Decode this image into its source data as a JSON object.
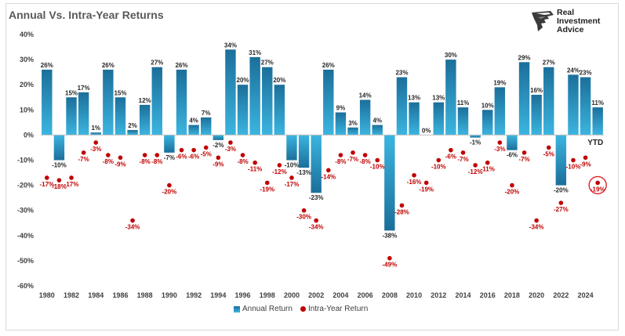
{
  "title": "Annual Vs. Intra-Year Returns",
  "logo": {
    "line1": "Real",
    "line2": "Investment",
    "line3": "Advice",
    "icon": "eagle-head-icon"
  },
  "ytd_label": "YTD",
  "colors": {
    "bar_top": "#1b6f9a",
    "bar_bottom": "#3bb5e0",
    "dot": "#c00000",
    "highlight_circle": "#e0202a"
  },
  "legend": {
    "annual": "Annual Return",
    "intra": "Intra-Year Return"
  },
  "chart_data": {
    "type": "bar",
    "title": "Annual Vs. Intra-Year Returns",
    "ylim": [
      -60,
      40
    ],
    "yticks": [
      40,
      30,
      20,
      10,
      0,
      -10,
      -20,
      -30,
      -40,
      -50,
      -60
    ],
    "ytick_labels": [
      "40%",
      "30%",
      "20%",
      "10%",
      "0%",
      "-10%",
      "-20%",
      "-30%",
      "-40%",
      "-50%",
      "-60%"
    ],
    "xtick_labels": [
      "1980",
      "1982",
      "1984",
      "1986",
      "1988",
      "1990",
      "1992",
      "1994",
      "1996",
      "1998",
      "2000",
      "2002",
      "2004",
      "2006",
      "2008",
      "2010",
      "2012",
      "2014",
      "2016",
      "2018",
      "2020",
      "2022",
      "2024"
    ],
    "legend_position": "bottom",
    "grid": false,
    "years": [
      1980,
      1981,
      1982,
      1983,
      1984,
      1985,
      1986,
      1987,
      1988,
      1989,
      1990,
      1991,
      1992,
      1993,
      1994,
      1995,
      1996,
      1997,
      1998,
      1999,
      2000,
      2001,
      2002,
      2003,
      2004,
      2005,
      2006,
      2007,
      2008,
      2009,
      2010,
      2011,
      2012,
      2013,
      2014,
      2015,
      2016,
      2017,
      2018,
      2019,
      2020,
      2021,
      2022,
      2023,
      2024,
      2025
    ],
    "series": [
      {
        "name": "Annual Return",
        "values": [
          26,
          -10,
          15,
          17,
          1,
          26,
          15,
          2,
          12,
          27,
          -7,
          26,
          4,
          7,
          -2,
          34,
          20,
          31,
          27,
          20,
          -10,
          -13,
          -23,
          26,
          9,
          3,
          14,
          4,
          -38,
          23,
          13,
          0,
          13,
          30,
          11,
          -1,
          10,
          19,
          -6,
          29,
          16,
          27,
          -20,
          24,
          23,
          11
        ]
      },
      {
        "name": "Intra-Year Return",
        "values": [
          -17,
          -18,
          -17,
          -7,
          -3,
          -8,
          -9,
          -34,
          -8,
          -8,
          -20,
          -6,
          -6,
          -5,
          -9,
          -3,
          -8,
          -11,
          -19,
          -12,
          -17,
          -30,
          -34,
          -14,
          -8,
          -7,
          -8,
          -10,
          -49,
          -28,
          -16,
          -19,
          -10,
          -6,
          -7,
          -12,
          -11,
          -3,
          -20,
          -7,
          -34,
          -5,
          -27,
          -10,
          -9,
          -19
        ]
      }
    ]
  }
}
